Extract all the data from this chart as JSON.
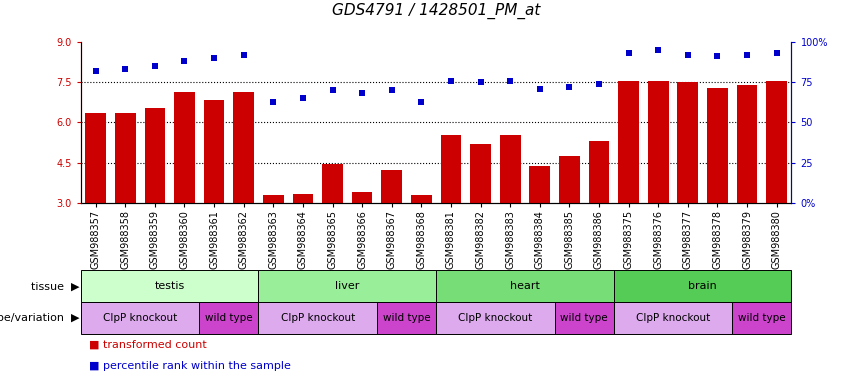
{
  "title": "GDS4791 / 1428501_PM_at",
  "samples": [
    "GSM988357",
    "GSM988358",
    "GSM988359",
    "GSM988360",
    "GSM988361",
    "GSM988362",
    "GSM988363",
    "GSM988364",
    "GSM988365",
    "GSM988366",
    "GSM988367",
    "GSM988368",
    "GSM988381",
    "GSM988382",
    "GSM988383",
    "GSM988384",
    "GSM988385",
    "GSM988386",
    "GSM988375",
    "GSM988376",
    "GSM988377",
    "GSM988378",
    "GSM988379",
    "GSM988380"
  ],
  "bar_values": [
    6.35,
    6.35,
    6.55,
    7.15,
    6.85,
    7.15,
    3.3,
    3.35,
    4.45,
    3.4,
    4.25,
    3.3,
    5.55,
    5.2,
    5.55,
    4.4,
    4.75,
    5.3,
    7.55,
    7.55,
    7.5,
    7.3,
    7.4,
    7.55
  ],
  "dot_values": [
    82,
    83,
    85,
    88,
    90,
    92,
    63,
    65,
    70,
    68,
    70,
    63,
    76,
    75,
    76,
    71,
    72,
    74,
    93,
    95,
    92,
    91,
    92,
    93
  ],
  "bar_color": "#cc0000",
  "dot_color": "#0000cc",
  "ylim": [
    3,
    9
  ],
  "yticks": [
    3,
    4.5,
    6,
    7.5,
    9
  ],
  "y2lim": [
    0,
    100
  ],
  "y2ticks": [
    0,
    25,
    50,
    75,
    100
  ],
  "y2ticklabels": [
    "0%",
    "25",
    "50",
    "75",
    "100%"
  ],
  "dotted_lines": [
    4.5,
    6.0,
    7.5
  ],
  "tissue_groups": [
    {
      "label": "testis",
      "start": 0,
      "end": 6,
      "color": "#ccffcc"
    },
    {
      "label": "liver",
      "start": 6,
      "end": 12,
      "color": "#99ee99"
    },
    {
      "label": "heart",
      "start": 12,
      "end": 18,
      "color": "#77dd77"
    },
    {
      "label": "brain",
      "start": 18,
      "end": 24,
      "color": "#55cc55"
    }
  ],
  "genotype_groups": [
    {
      "label": "ClpP knockout",
      "start": 0,
      "end": 4,
      "color": "#ddaaee"
    },
    {
      "label": "wild type",
      "start": 4,
      "end": 6,
      "color": "#cc44cc"
    },
    {
      "label": "ClpP knockout",
      "start": 6,
      "end": 10,
      "color": "#ddaaee"
    },
    {
      "label": "wild type",
      "start": 10,
      "end": 12,
      "color": "#cc44cc"
    },
    {
      "label": "ClpP knockout",
      "start": 12,
      "end": 16,
      "color": "#ddaaee"
    },
    {
      "label": "wild type",
      "start": 16,
      "end": 18,
      "color": "#cc44cc"
    },
    {
      "label": "ClpP knockout",
      "start": 18,
      "end": 22,
      "color": "#ddaaee"
    },
    {
      "label": "wild type",
      "start": 22,
      "end": 24,
      "color": "#cc44cc"
    }
  ],
  "legend_items": [
    {
      "label": "transformed count",
      "color": "#cc0000"
    },
    {
      "label": "percentile rank within the sample",
      "color": "#0000cc"
    }
  ],
  "title_fontsize": 11,
  "tick_fontsize": 7,
  "annot_fontsize": 8,
  "geno_fontsize": 7.5
}
